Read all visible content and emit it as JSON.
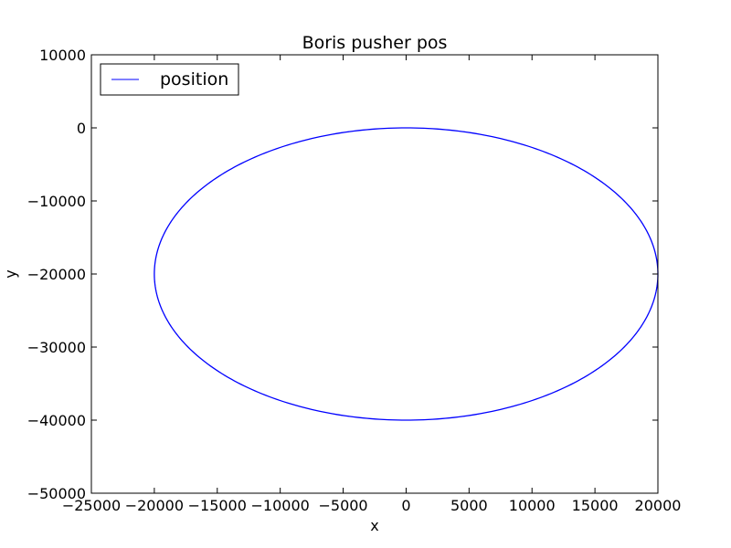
{
  "chart_data": {
    "type": "line",
    "title": "Boris pusher pos",
    "xlabel": "x",
    "ylabel": "y",
    "xlim": [
      -25000,
      20000
    ],
    "ylim": [
      -50000,
      10000
    ],
    "xticks": [
      -25000,
      -20000,
      -15000,
      -10000,
      -5000,
      0,
      5000,
      10000,
      15000,
      20000
    ],
    "yticks": [
      10000,
      0,
      -10000,
      -20000,
      -30000,
      -40000,
      -50000
    ],
    "xtick_labels": [
      "−25000",
      "−20000",
      "−15000",
      "−10000",
      "−5000",
      "0",
      "5000",
      "10000",
      "15000",
      "20000"
    ],
    "ytick_labels": [
      "10000",
      "0",
      "−10000",
      "−20000",
      "−30000",
      "−40000",
      "−50000"
    ],
    "grid": false,
    "legend_position": "top-left",
    "series": [
      {
        "name": "position",
        "color": "#0000ff",
        "shape": "closed ellipse",
        "points": [
          {
            "x": 0,
            "y": 0
          },
          {
            "x": 10000,
            "y": -2680
          },
          {
            "x": 17320,
            "y": -10000
          },
          {
            "x": 20000,
            "y": -20000
          },
          {
            "x": 17320,
            "y": -30000
          },
          {
            "x": 10000,
            "y": -37320
          },
          {
            "x": 0,
            "y": -40000
          },
          {
            "x": -10000,
            "y": -37320
          },
          {
            "x": -17320,
            "y": -30000
          },
          {
            "x": -20000,
            "y": -20000
          },
          {
            "x": -17320,
            "y": -10000
          },
          {
            "x": -10000,
            "y": -2680
          },
          {
            "x": 0,
            "y": 0
          }
        ]
      }
    ]
  }
}
